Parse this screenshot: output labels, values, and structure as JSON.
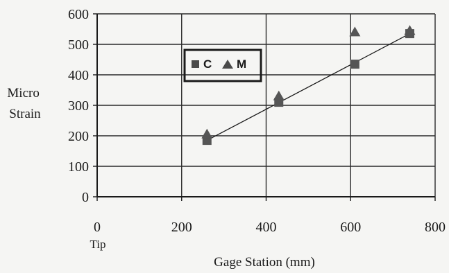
{
  "chart_data": {
    "type": "scatter",
    "xlabel": "Gage Station (mm)",
    "ylabel": [
      "Micro",
      "Strain"
    ],
    "xlim": [
      0,
      800
    ],
    "ylim": [
      0,
      600
    ],
    "xticks": [
      0,
      200,
      400,
      600,
      800
    ],
    "yticks": [
      0,
      100,
      200,
      300,
      400,
      500,
      600
    ],
    "x_annotation": "Tip",
    "grid": true,
    "legend": {
      "placement": "top-left",
      "entries": [
        "C",
        "M"
      ]
    },
    "series": [
      {
        "name": "C",
        "marker": "square",
        "x": [
          260,
          430,
          610,
          740
        ],
        "y": [
          185,
          310,
          435,
          535
        ],
        "color": "#555555"
      },
      {
        "name": "M",
        "marker": "triangle",
        "x": [
          260,
          430,
          610,
          740
        ],
        "y": [
          205,
          330,
          540,
          545
        ],
        "color": "#555555"
      }
    ],
    "trendline": {
      "x": [
        260,
        740
      ],
      "y": [
        185,
        535
      ]
    }
  }
}
